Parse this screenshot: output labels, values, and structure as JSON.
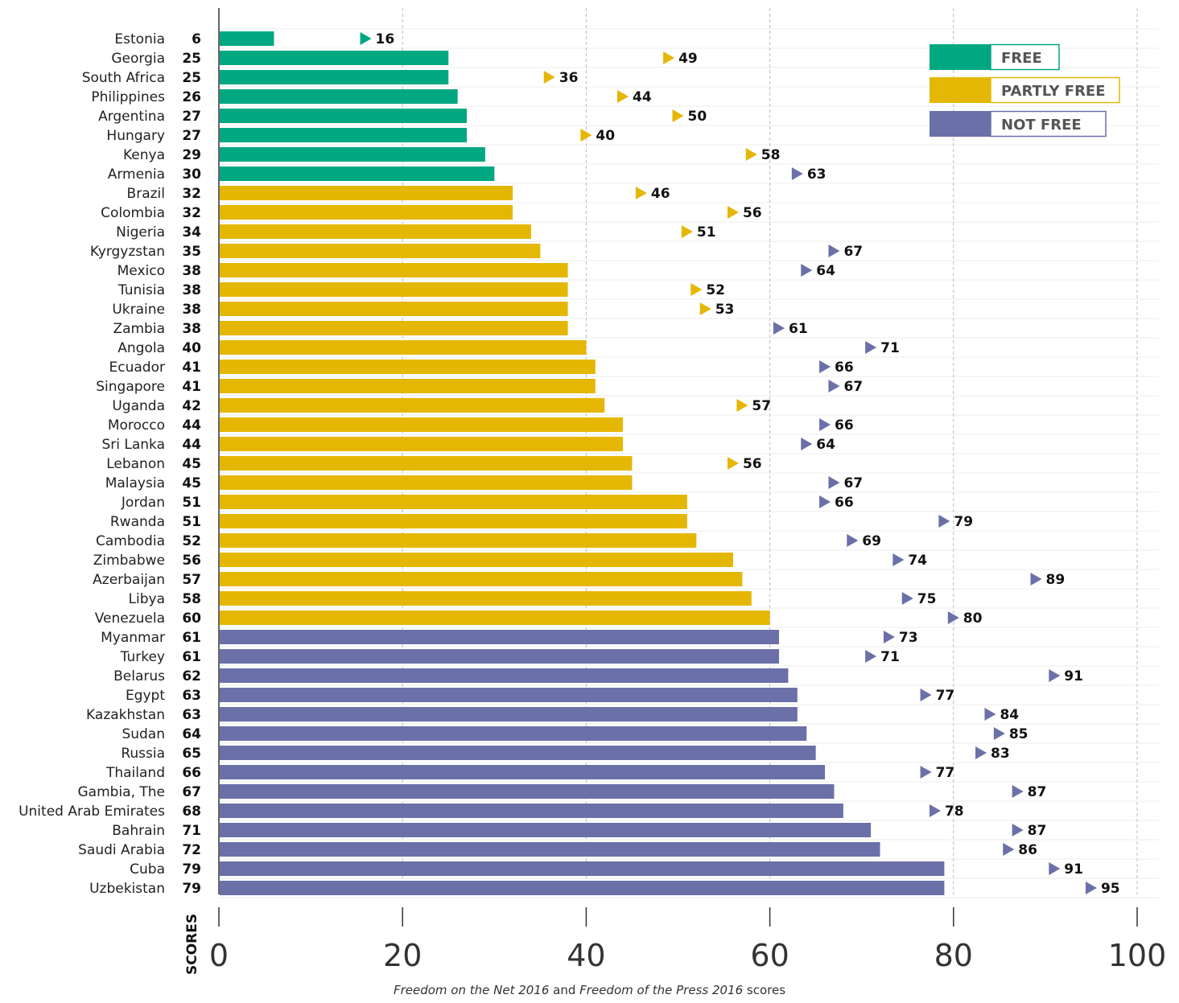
{
  "caption": {
    "part1": "Freedom on the Net 2016",
    "part2": " and ",
    "part3": "Freedom of the Press 2016",
    "part4": " scores"
  },
  "chart_data": {
    "type": "bar",
    "orientation": "horizontal",
    "xlabel": "SCORES",
    "xlim": [
      0,
      100
    ],
    "xticks": [
      0,
      20,
      40,
      60,
      80,
      100
    ],
    "grid": true,
    "legend_position": "top-right",
    "colors": {
      "free": "#00a882",
      "partly": "#e5b705",
      "notfree": "#6b70a8"
    },
    "legend": [
      {
        "key": "free",
        "label": "FREE"
      },
      {
        "key": "partly",
        "label": "PARTLY FREE"
      },
      {
        "key": "notfree",
        "label": "NOT FREE"
      }
    ],
    "categories": [
      "Estonia",
      "Georgia",
      "South Africa",
      "Philippines",
      "Argentina",
      "Hungary",
      "Kenya",
      "Armenia",
      "Brazil",
      "Colombia",
      "Nigeria",
      "Kyrgyzstan",
      "Mexico",
      "Tunisia",
      "Ukraine",
      "Zambia",
      "Angola",
      "Ecuador",
      "Singapore",
      "Uganda",
      "Morocco",
      "Sri Lanka",
      "Lebanon",
      "Malaysia",
      "Jordan",
      "Rwanda",
      "Cambodia",
      "Zimbabwe",
      "Azerbaijan",
      "Libya",
      "Venezuela",
      "Myanmar",
      "Turkey",
      "Belarus",
      "Egypt",
      "Kazakhstan",
      "Sudan",
      "Russia",
      "Thailand",
      "Gambia, The",
      "United Arab Emirates",
      "Bahrain",
      "Saudi Arabia",
      "Cuba",
      "Uzbekistan"
    ],
    "series": [
      {
        "name": "Freedom on the Net 2016",
        "values": [
          6,
          25,
          25,
          26,
          27,
          27,
          29,
          30,
          32,
          32,
          34,
          35,
          38,
          38,
          38,
          38,
          40,
          41,
          41,
          42,
          44,
          44,
          45,
          45,
          51,
          51,
          52,
          56,
          57,
          58,
          60,
          61,
          61,
          62,
          63,
          63,
          64,
          65,
          66,
          67,
          68,
          71,
          72,
          79,
          79
        ],
        "status": [
          "free",
          "free",
          "free",
          "free",
          "free",
          "free",
          "free",
          "free",
          "partly",
          "partly",
          "partly",
          "partly",
          "partly",
          "partly",
          "partly",
          "partly",
          "partly",
          "partly",
          "partly",
          "partly",
          "partly",
          "partly",
          "partly",
          "partly",
          "partly",
          "partly",
          "partly",
          "partly",
          "partly",
          "partly",
          "partly",
          "notfree",
          "notfree",
          "notfree",
          "notfree",
          "notfree",
          "notfree",
          "notfree",
          "notfree",
          "notfree",
          "notfree",
          "notfree",
          "notfree",
          "notfree",
          "notfree"
        ]
      },
      {
        "name": "Freedom of the Press 2016",
        "values": [
          16,
          49,
          36,
          44,
          50,
          40,
          58,
          63,
          46,
          56,
          51,
          67,
          64,
          52,
          53,
          61,
          71,
          66,
          67,
          57,
          66,
          64,
          56,
          67,
          66,
          79,
          69,
          74,
          89,
          75,
          80,
          73,
          71,
          91,
          77,
          84,
          85,
          83,
          77,
          87,
          78,
          87,
          86,
          91,
          95
        ],
        "status": [
          "free",
          "partly",
          "partly",
          "partly",
          "partly",
          "partly",
          "partly",
          "notfree",
          "partly",
          "partly",
          "partly",
          "notfree",
          "notfree",
          "partly",
          "partly",
          "notfree",
          "notfree",
          "notfree",
          "notfree",
          "partly",
          "notfree",
          "notfree",
          "partly",
          "notfree",
          "notfree",
          "notfree",
          "notfree",
          "notfree",
          "notfree",
          "notfree",
          "notfree",
          "notfree",
          "notfree",
          "notfree",
          "notfree",
          "notfree",
          "notfree",
          "notfree",
          "notfree",
          "notfree",
          "notfree",
          "notfree",
          "notfree",
          "notfree",
          "notfree"
        ]
      }
    ]
  }
}
